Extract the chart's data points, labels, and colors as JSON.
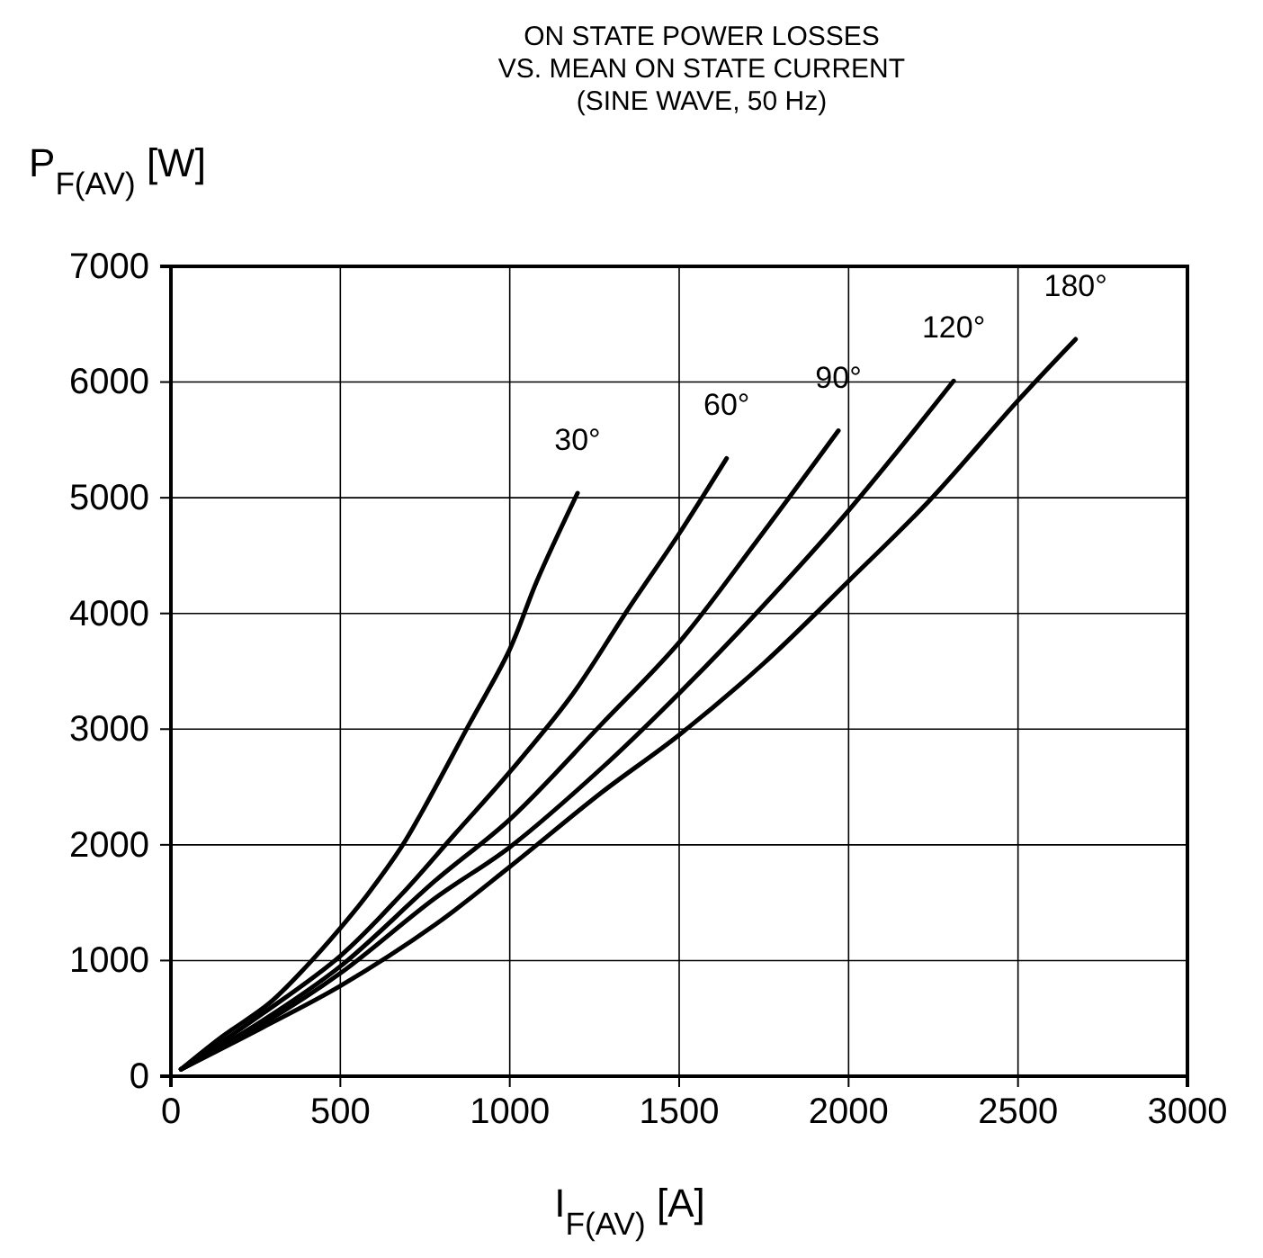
{
  "chart_data": {
    "type": "line",
    "title": "ON STATE POWER LOSSES\nVS. MEAN ON STATE CURRENT\n(SINE WAVE, 50 Hz)",
    "xlabel": "I$_{F(AV)}$  [A]",
    "ylabel": "P$_{F(AV)}$  [W]",
    "xlim": [
      0,
      3000
    ],
    "xticks": [
      0,
      500,
      1000,
      1500,
      2000,
      2500,
      3000
    ],
    "ylim": [
      0,
      7000
    ],
    "yticks": [
      0,
      1000,
      2000,
      3000,
      4000,
      5000,
      6000,
      7000
    ],
    "grid": true,
    "marker": "none",
    "line_style": "solid",
    "series": [
      {
        "name": "30°",
        "color": "#000000",
        "x": [
          30,
          150,
          290,
          400,
          500,
          580,
          680,
          740,
          880,
          1000,
          1080,
          1200
        ],
        "values": [
          60,
          340,
          630,
          950,
          1280,
          1570,
          1980,
          2280,
          3040,
          3690,
          4280,
          5040
        ]
      },
      {
        "name": "60°",
        "color": "#000000",
        "x": [
          30,
          270,
          500,
          680,
          840,
          1000,
          1180,
          1350,
          1500,
          1640
        ],
        "values": [
          60,
          540,
          1040,
          1570,
          2100,
          2630,
          3280,
          4040,
          4690,
          5340
        ]
      },
      {
        "name": "90°",
        "color": "#000000",
        "x": [
          30,
          270,
          500,
          780,
          1000,
          1270,
          1500,
          1730,
          1970
        ],
        "values": [
          60,
          480,
          950,
          1690,
          2220,
          3040,
          3750,
          4630,
          5580
        ]
      },
      {
        "name": "120°",
        "color": "#000000",
        "x": [
          30,
          270,
          500,
          780,
          1000,
          1270,
          1500,
          1730,
          2000,
          2310
        ],
        "values": [
          60,
          450,
          890,
          1540,
          1980,
          2660,
          3310,
          4010,
          4890,
          6010
        ]
      },
      {
        "name": "180°",
        "color": "#000000",
        "x": [
          30,
          270,
          500,
          780,
          1000,
          1270,
          1500,
          1750,
          2000,
          2240,
          2500,
          2670
        ],
        "values": [
          60,
          420,
          780,
          1310,
          1810,
          2450,
          2950,
          3570,
          4280,
          4980,
          5840,
          6370
        ]
      }
    ]
  }
}
